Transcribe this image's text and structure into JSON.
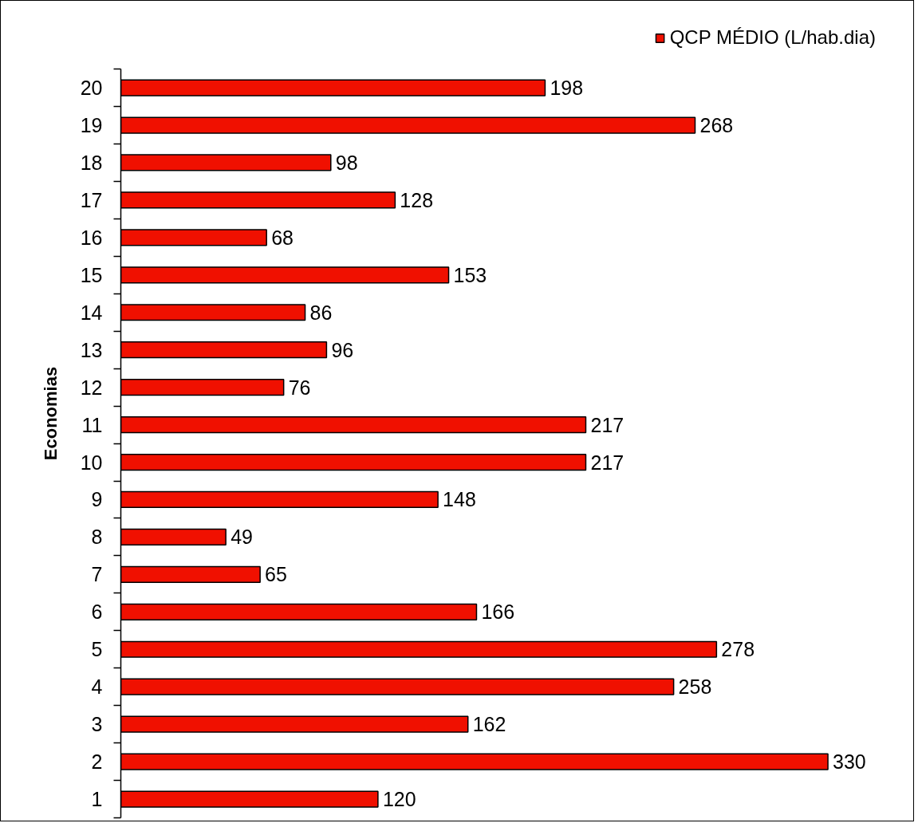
{
  "chart_data": {
    "type": "bar",
    "orientation": "horizontal",
    "ylabel": "Economias",
    "categories": [
      "20",
      "19",
      "18",
      "17",
      "16",
      "15",
      "14",
      "13",
      "12",
      "11",
      "10",
      "9",
      "8",
      "7",
      "6",
      "5",
      "4",
      "3",
      "2",
      "1"
    ],
    "series": [
      {
        "name": "QCP MÉDIO (L/hab.dia)",
        "color": "#f01000",
        "values": [
          198,
          268,
          98,
          128,
          68,
          153,
          86,
          96,
          76,
          217,
          217,
          148,
          49,
          65,
          166,
          278,
          258,
          162,
          330,
          120
        ]
      }
    ],
    "data_labels": true,
    "legend": "top right",
    "grid": false,
    "tick_labels": "y"
  }
}
